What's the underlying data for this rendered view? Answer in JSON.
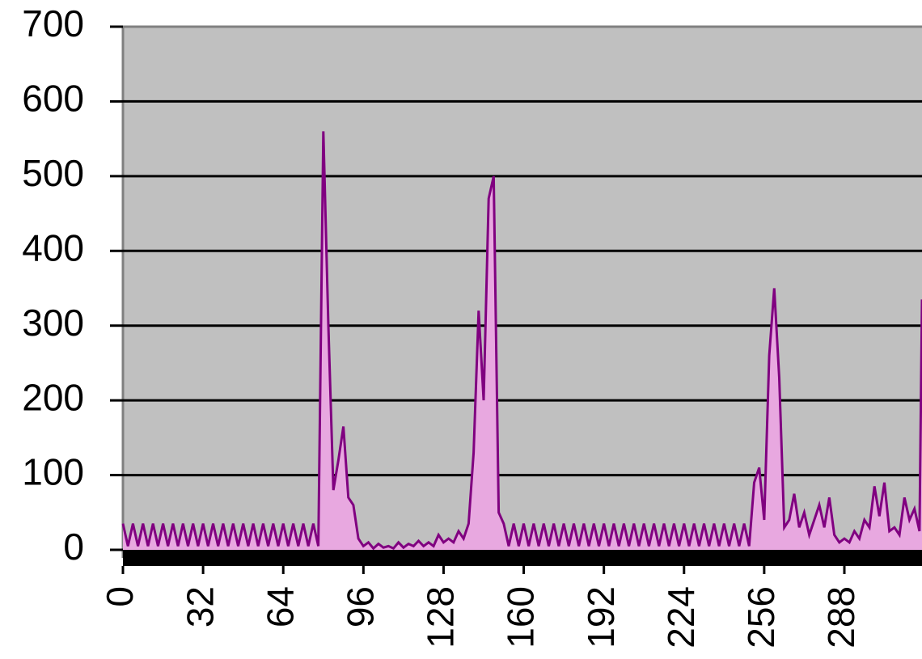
{
  "chart_data": {
    "type": "area",
    "x": [
      0,
      2,
      4,
      6,
      8,
      10,
      12,
      14,
      16,
      18,
      20,
      22,
      24,
      26,
      28,
      30,
      32,
      34,
      36,
      38,
      40,
      42,
      44,
      46,
      48,
      50,
      52,
      54,
      56,
      58,
      60,
      62,
      64,
      66,
      68,
      70,
      72,
      74,
      76,
      78,
      80,
      82,
      84,
      86,
      88,
      90,
      92,
      94,
      96,
      98,
      100,
      102,
      104,
      106,
      108,
      110,
      112,
      114,
      116,
      118,
      120,
      122,
      124,
      126,
      128,
      130,
      132,
      134,
      136,
      138,
      140,
      142,
      144,
      146,
      148,
      150,
      152,
      154,
      156,
      158,
      160,
      162,
      164,
      166,
      168,
      170,
      172,
      174,
      176,
      178,
      180,
      182,
      184,
      186,
      188,
      190,
      192,
      194,
      196,
      198,
      200,
      202,
      204,
      206,
      208,
      210,
      212,
      214,
      216,
      218,
      220,
      222,
      224,
      226,
      228,
      230,
      232,
      234,
      236,
      238,
      240,
      242,
      244,
      246,
      248,
      250,
      252,
      254,
      256,
      258,
      260,
      262,
      264,
      266,
      268,
      270,
      272,
      274,
      276,
      278,
      280,
      282,
      284,
      286,
      288,
      290,
      292,
      294,
      296,
      298,
      300,
      302,
      304,
      306,
      308,
      310,
      312,
      314,
      316,
      318,
      319
    ],
    "values": [
      35,
      5,
      35,
      5,
      35,
      5,
      35,
      5,
      35,
      5,
      35,
      5,
      35,
      5,
      35,
      5,
      35,
      5,
      35,
      5,
      35,
      5,
      35,
      5,
      35,
      5,
      35,
      5,
      35,
      5,
      35,
      5,
      35,
      5,
      35,
      5,
      35,
      5,
      35,
      5,
      560,
      300,
      80,
      120,
      165,
      70,
      60,
      15,
      5,
      10,
      2,
      8,
      3,
      5,
      2,
      10,
      3,
      8,
      5,
      12,
      5,
      10,
      5,
      20,
      10,
      15,
      10,
      25,
      15,
      35,
      130,
      320,
      200,
      470,
      500,
      50,
      35,
      5,
      35,
      5,
      35,
      5,
      35,
      5,
      35,
      5,
      35,
      5,
      35,
      5,
      35,
      5,
      35,
      5,
      35,
      5,
      35,
      5,
      35,
      5,
      35,
      5,
      35,
      5,
      35,
      5,
      35,
      5,
      35,
      5,
      35,
      5,
      35,
      5,
      35,
      5,
      35,
      5,
      35,
      5,
      35,
      5,
      35,
      5,
      35,
      5,
      90,
      110,
      40,
      260,
      350,
      230,
      30,
      40,
      75,
      30,
      50,
      20,
      40,
      60,
      30,
      70,
      20,
      10,
      15,
      10,
      25,
      15,
      40,
      30,
      85,
      45,
      90,
      25,
      30,
      20,
      70,
      40,
      55,
      25,
      335
    ],
    "color": "#800080",
    "fill": "#e8a8e0",
    "xlim": [
      0,
      319
    ],
    "xticks": [
      0,
      32,
      64,
      96,
      128,
      160,
      192,
      224,
      256,
      288
    ],
    "ylim": [
      0,
      700
    ],
    "yticks": [
      0,
      100,
      200,
      300,
      400,
      500,
      600,
      700
    ],
    "grid": true
  }
}
